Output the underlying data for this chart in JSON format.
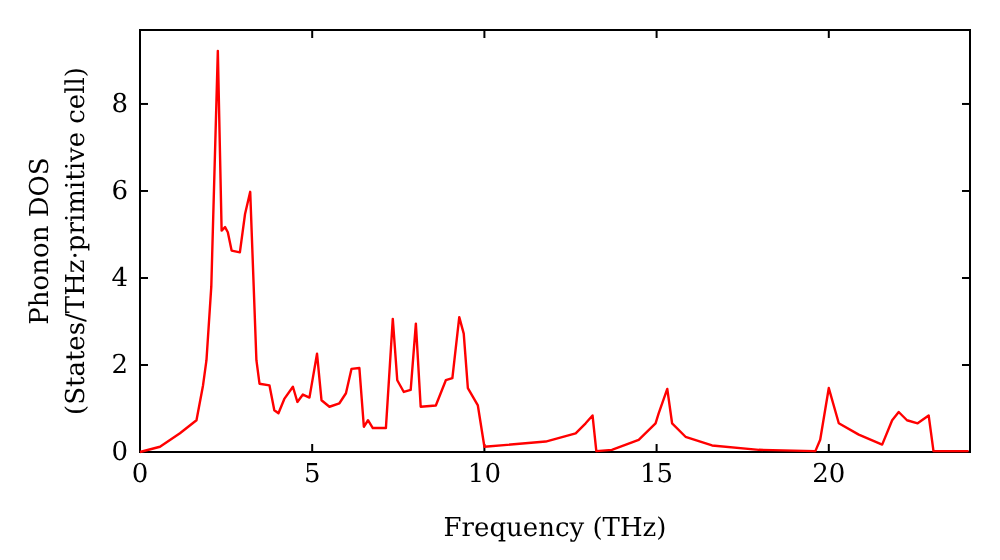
{
  "chart_data": {
    "type": "line",
    "xlabel": "Frequency (THz)",
    "ylabel": "Phonon DOS\n(States/THz·primitive cell)",
    "xlim": [
      0,
      24.1
    ],
    "ylim": [
      0,
      9.7
    ],
    "xticks": [
      0,
      5,
      10,
      15,
      20
    ],
    "yticks": [
      0,
      2,
      4,
      6,
      8
    ],
    "grid": false,
    "marker": "none",
    "line_style": "solid",
    "series": [
      {
        "color": "#ff0000",
        "x": [
          0,
          0.58,
          1.16,
          1.64,
          1.83,
          1.93,
          2.07,
          2.26,
          2.37,
          2.47,
          2.55,
          2.66,
          2.9,
          3.05,
          3.2,
          3.38,
          3.47,
          3.76,
          3.9,
          4.02,
          4.19,
          4.44,
          4.57,
          4.73,
          4.92,
          5.14,
          5.27,
          5.5,
          5.79,
          5.98,
          6.14,
          6.37,
          6.5,
          6.62,
          6.76,
          7.14,
          7.34,
          7.47,
          7.66,
          7.86,
          8.01,
          8.15,
          8.59,
          8.88,
          9.07,
          9.27,
          9.4,
          9.52,
          9.81,
          10.0,
          11.78,
          12.65,
          12.94,
          13.14,
          13.25,
          13.7,
          14.48,
          14.97,
          15.06,
          15.31,
          15.45,
          15.84,
          16.61,
          17.97,
          19.61,
          19.75,
          20.0,
          20.29,
          20.87,
          21.55,
          21.84,
          22.03,
          22.27,
          22.58,
          22.9,
          23.04,
          24.06
        ],
        "values": [
          0,
          0.12,
          0.43,
          0.73,
          1.53,
          2.11,
          3.8,
          9.22,
          5.09,
          5.17,
          5.05,
          4.63,
          4.59,
          5.47,
          5.98,
          2.11,
          1.57,
          1.53,
          0.96,
          0.89,
          1.22,
          1.5,
          1.15,
          1.32,
          1.25,
          2.26,
          1.19,
          1.04,
          1.12,
          1.35,
          1.91,
          1.93,
          0.58,
          0.73,
          0.55,
          0.55,
          3.06,
          1.65,
          1.38,
          1.43,
          2.95,
          1.04,
          1.07,
          1.65,
          1.7,
          3.1,
          2.72,
          1.47,
          1.07,
          0.12,
          0.24,
          0.43,
          0.66,
          0.84,
          0.02,
          0.05,
          0.28,
          0.66,
          0.89,
          1.45,
          0.66,
          0.35,
          0.15,
          0.05,
          0.02,
          0.28,
          1.47,
          0.66,
          0.4,
          0.17,
          0.73,
          0.92,
          0.73,
          0.66,
          0.84,
          0.02,
          0.02
        ]
      }
    ]
  }
}
